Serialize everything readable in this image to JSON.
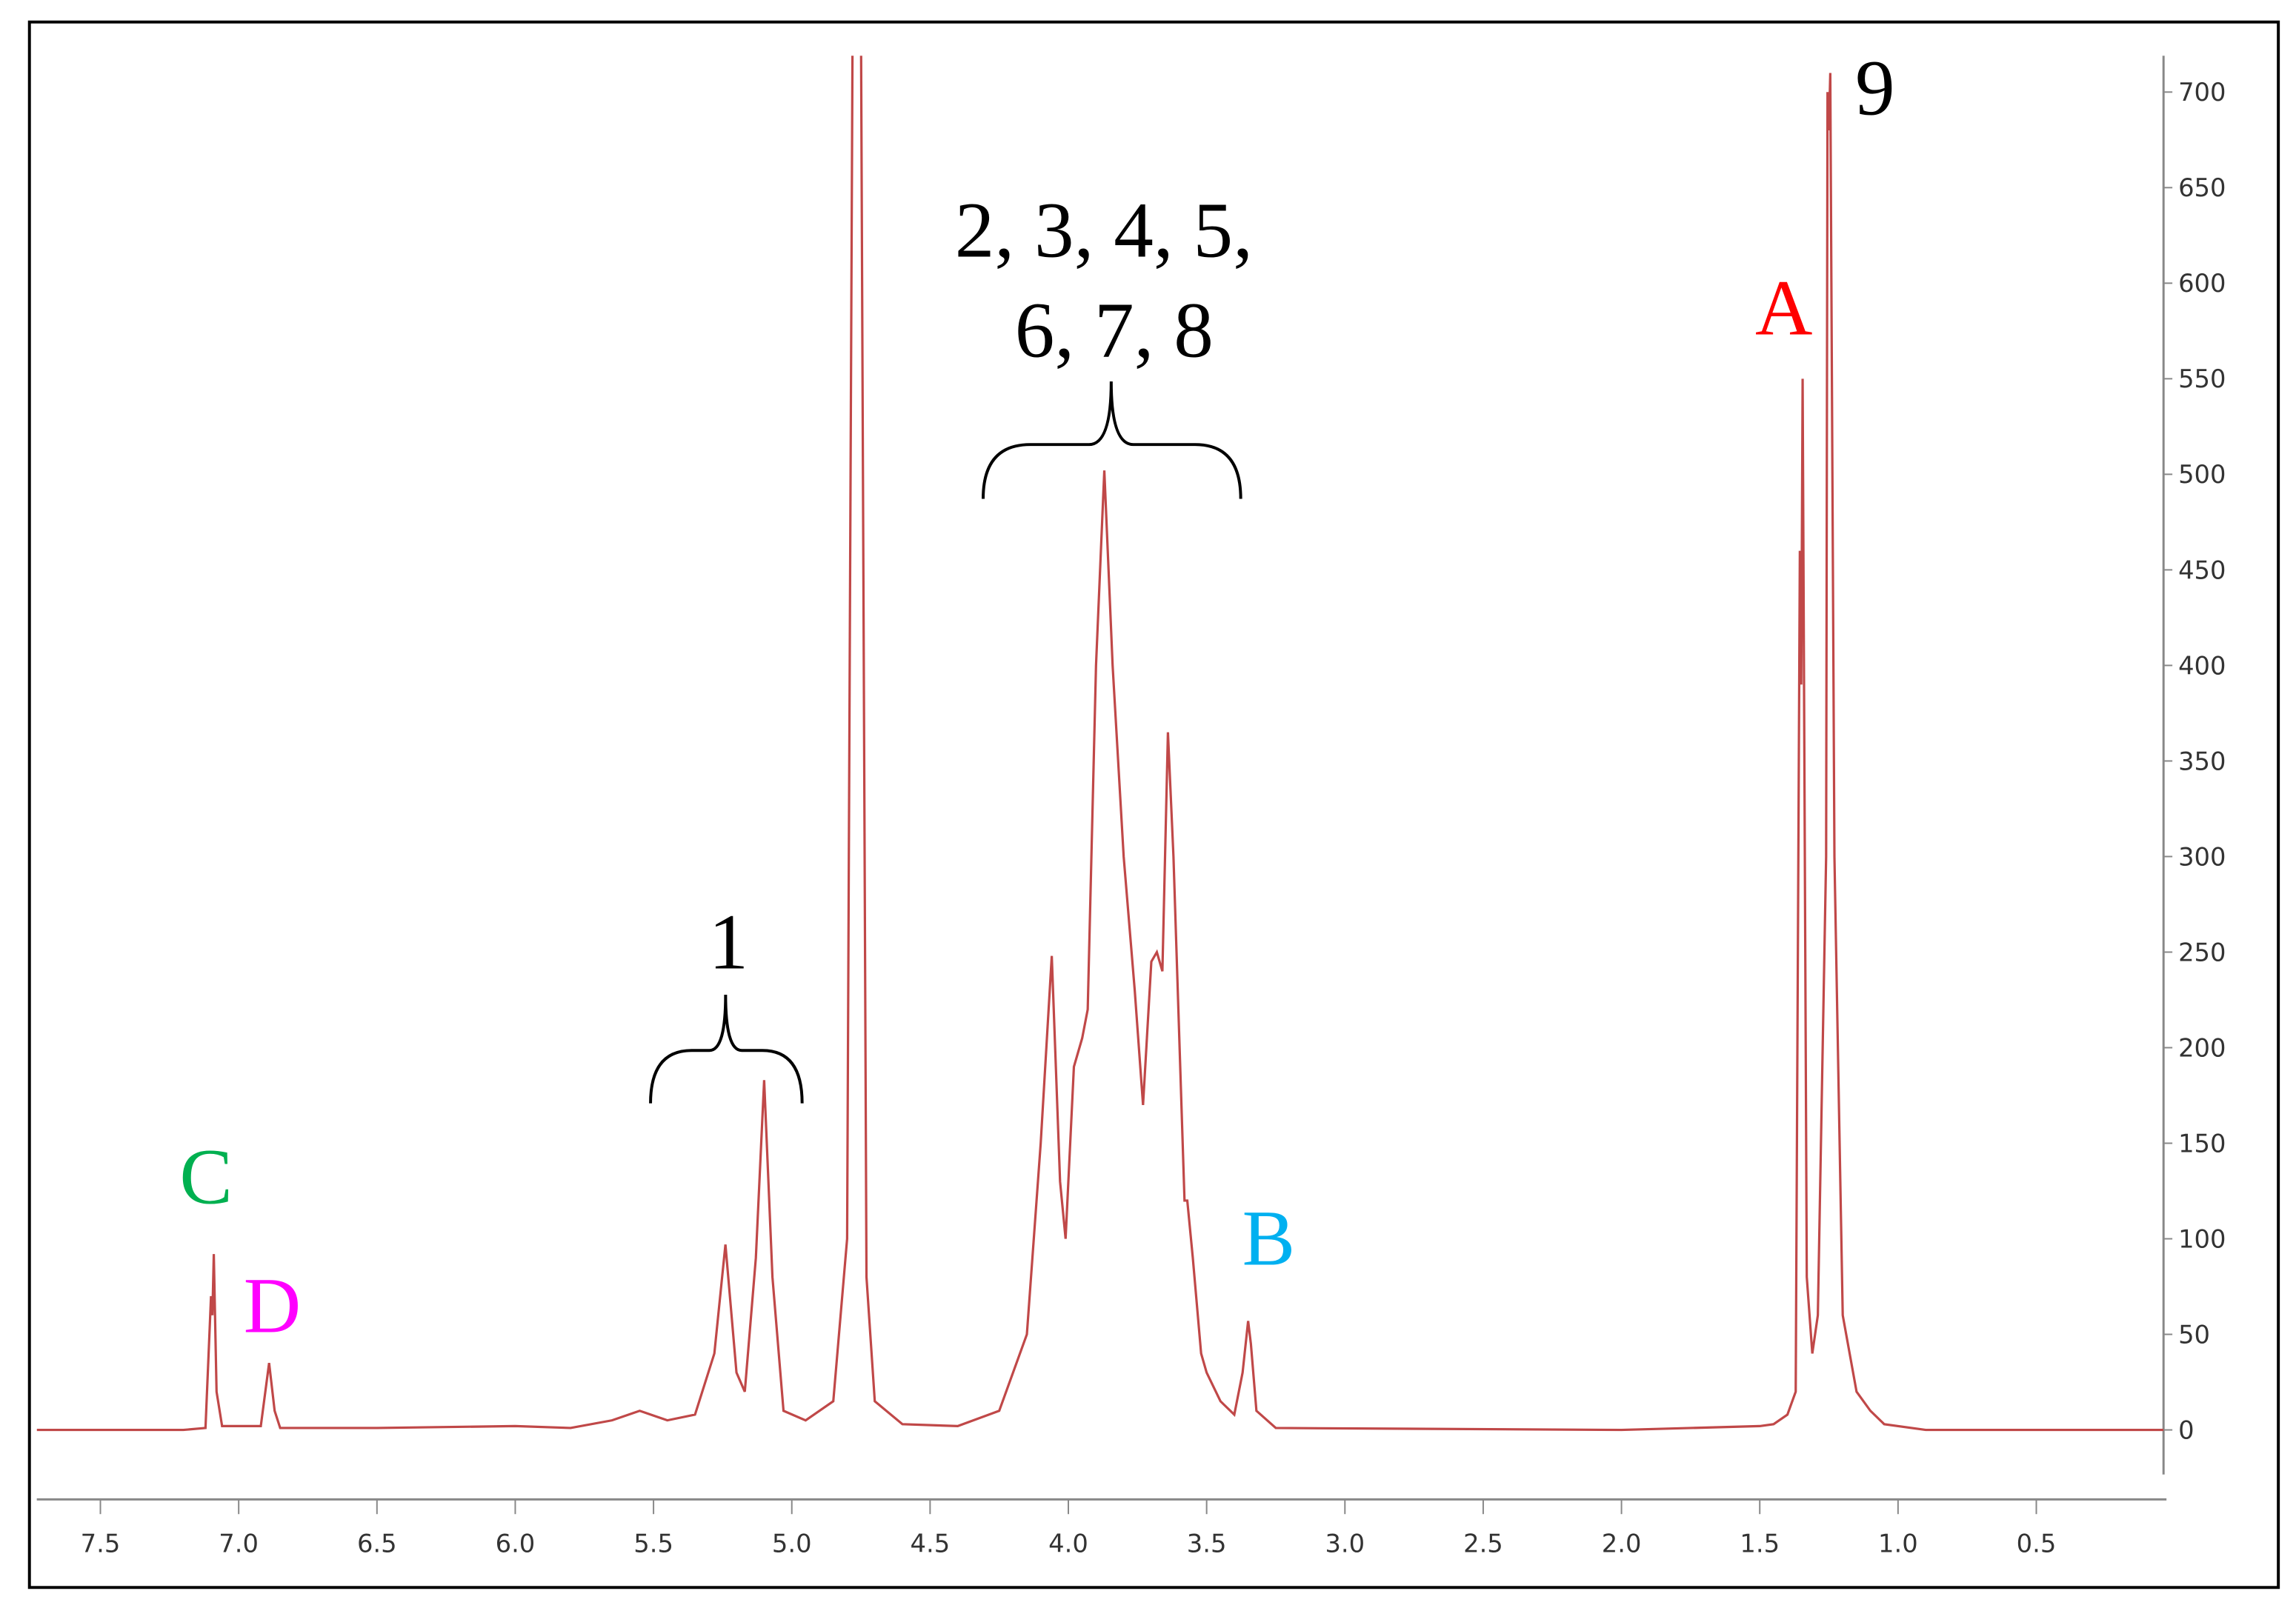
{
  "chart_data": {
    "type": "line",
    "x": [
      7.73,
      7.2,
      7.12,
      7.1,
      7.095,
      7.09,
      7.08,
      7.06,
      6.92,
      6.89,
      6.87,
      6.85,
      6.5,
      6.0,
      5.8,
      5.65,
      5.55,
      5.45,
      5.35,
      5.28,
      5.24,
      5.2,
      5.17,
      5.13,
      5.1,
      5.07,
      5.03,
      4.95,
      4.85,
      4.8,
      4.78,
      4.75,
      4.73,
      4.7,
      4.6,
      4.4,
      4.25,
      4.15,
      4.1,
      4.06,
      4.03,
      4.01,
      3.98,
      3.95,
      3.93,
      3.9,
      3.87,
      3.84,
      3.8,
      3.76,
      3.73,
      3.7,
      3.68,
      3.66,
      3.64,
      3.62,
      3.58,
      3.57,
      3.55,
      3.52,
      3.5,
      3.45,
      3.4,
      3.37,
      3.35,
      3.34,
      3.32,
      3.25,
      2.0,
      1.5,
      1.45,
      1.4,
      1.37,
      1.355,
      1.35,
      1.345,
      1.33,
      1.31,
      1.29,
      1.26,
      1.255,
      1.25,
      1.245,
      1.23,
      1.2,
      1.15,
      1.1,
      1.05,
      0.9,
      0.04
    ],
    "series": [
      {
        "color": "#c04848",
        "values": [
          0,
          0,
          1,
          70,
          60,
          92,
          20,
          2,
          2,
          35,
          10,
          1,
          1,
          2,
          1,
          5,
          10,
          5,
          8,
          40,
          97,
          30,
          20,
          90,
          183,
          80,
          10,
          5,
          15,
          100,
          740,
          740,
          80,
          15,
          3,
          2,
          10,
          50,
          150,
          248,
          130,
          100,
          190,
          205,
          220,
          400,
          502,
          400,
          300,
          230,
          170,
          245,
          250,
          240,
          365,
          300,
          120,
          120,
          90,
          40,
          30,
          15,
          8,
          30,
          57,
          45,
          10,
          1,
          0,
          2,
          3,
          8,
          20,
          460,
          390,
          550,
          80,
          40,
          60,
          300,
          700,
          680,
          710,
          300,
          60,
          20,
          10,
          3,
          0,
          0
        ]
      }
    ],
    "xlim": [
      7.73,
      0.04
    ],
    "xticks": [
      7.5,
      {
        "value": 7,
        "label": "7.0"
      },
      6.5,
      {
        "value": 6,
        "label": "6.0"
      },
      5.5,
      {
        "value": 5,
        "label": "5.0"
      },
      4.5,
      {
        "value": 4,
        "label": "4.0"
      },
      3.5,
      {
        "value": 3,
        "label": "3.0"
      },
      2.5,
      {
        "value": 2,
        "label": "2.0"
      },
      1.5,
      {
        "value": 1,
        "label": "1.0"
      },
      0.5
    ],
    "ylim": [
      -31,
      719
    ],
    "yticks": [
      0,
      50,
      100,
      150,
      200,
      250,
      300,
      350,
      400,
      450,
      500,
      550,
      600,
      650,
      700
    ],
    "annotations": [
      {
        "text": "9",
        "color": "#000000"
      },
      {
        "text": "2, 3, 4, 5,",
        "color": "#000000"
      },
      {
        "text": "6, 7, 8",
        "color": "#000000"
      },
      {
        "text": "1",
        "color": "#000000"
      },
      {
        "text": "A",
        "color": "#ff0000"
      },
      {
        "text": "B",
        "color": "#00b0f0"
      },
      {
        "text": "C",
        "color": "#00b050"
      },
      {
        "text": "D",
        "color": "#ff00ff"
      }
    ]
  }
}
